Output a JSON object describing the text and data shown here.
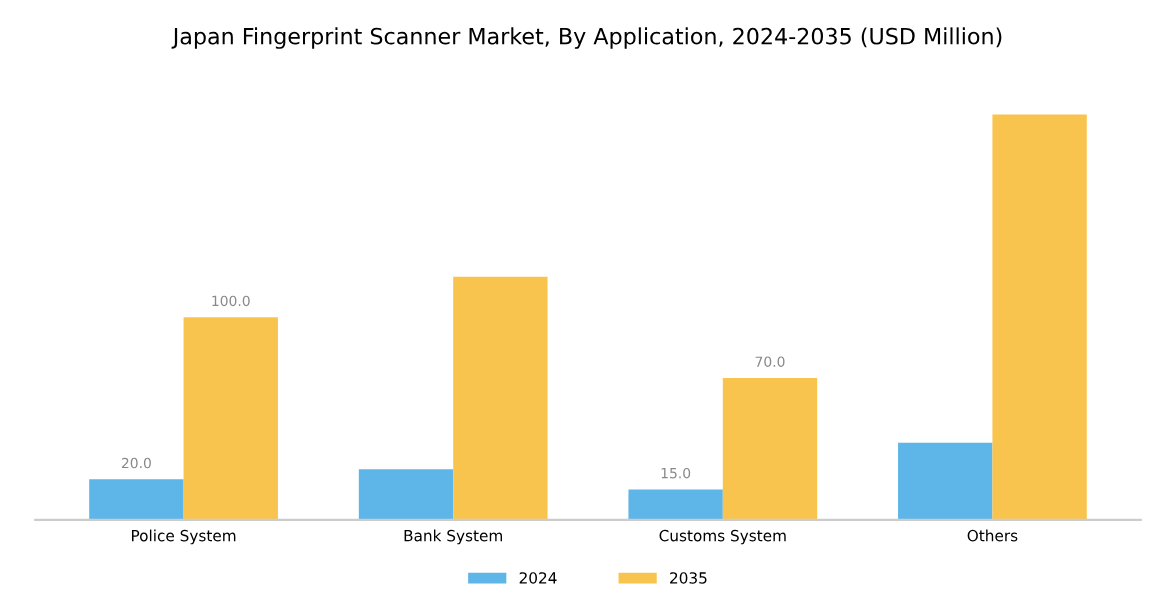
{
  "chart_data": {
    "type": "bar",
    "title": "Japan Fingerprint Scanner Market, By Application, 2024-2035 (USD Million)",
    "categories": [
      "Police System",
      "Bank System",
      "Customs System",
      "Others"
    ],
    "series": [
      {
        "name": "2024",
        "color": "#5db5e8",
        "values": [
          20,
          25,
          15,
          38
        ],
        "value_labels": [
          "20.0",
          null,
          "15.0",
          null
        ]
      },
      {
        "name": "2035",
        "color": "#f9c44e",
        "values": [
          100,
          120,
          70,
          200
        ],
        "value_labels": [
          "100.0",
          null,
          "70.0",
          null
        ]
      }
    ],
    "tick_labels": "x",
    "grid": false,
    "legend": "bottom"
  }
}
